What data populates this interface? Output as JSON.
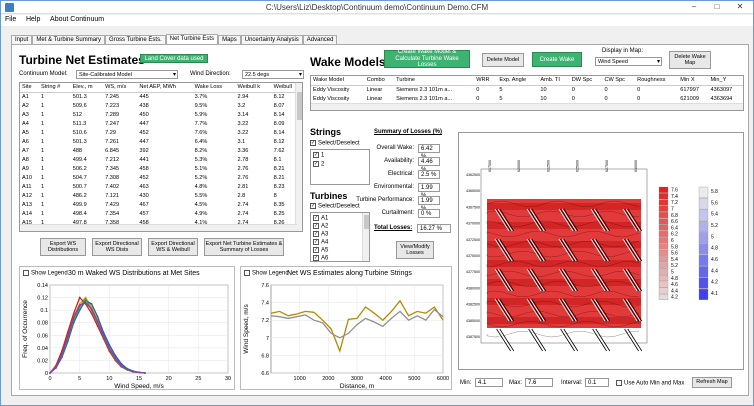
{
  "window": {
    "title": "C:\\Users\\Liz\\Desktop\\Continuum demo\\Continuum Demo.CFM",
    "minimize": "–",
    "maximize": "□",
    "close": "✕"
  },
  "menu": [
    "File",
    "Help",
    "About Continuum"
  ],
  "tabs": [
    "Input",
    "Met & Turbine Summary",
    "Gross Turbine Ests.",
    "Net Turbine Ests",
    "Maps",
    "Uncertainty Analysis",
    "Advanced"
  ],
  "net": {
    "title": "Turbine Net Estimates",
    "land_cover": "Land Cover data used",
    "model_label": "Continuum Model:",
    "model_value": "Site-Calibrated Model",
    "wd_label": "Wind Direction:",
    "wd_value": "22.5 degs",
    "columns": [
      "Site",
      "String #",
      "Elev., m",
      "WS, m/s",
      "Net AEP, MWh",
      "Wake Loss",
      "Weibull k",
      "Weibull"
    ],
    "rows": [
      [
        "A1",
        "1",
        "501.3",
        "7.245",
        "445",
        "3.7%",
        "2.94",
        "8.12"
      ],
      [
        "A2",
        "1",
        "509.6",
        "7.223",
        "438",
        "9.5%",
        "3.2",
        "8.07"
      ],
      [
        "A3",
        "1",
        "512",
        "7.289",
        "450",
        "5.9%",
        "3.14",
        "8.14"
      ],
      [
        "A4",
        "1",
        "511.3",
        "7.247",
        "447",
        "7.7%",
        "3.22",
        "8.09"
      ],
      [
        "A5",
        "1",
        "510.6",
        "7.29",
        "452",
        "7.6%",
        "3.22",
        "8.14"
      ],
      [
        "A6",
        "1",
        "501.3",
        "7.261",
        "447",
        "6.4%",
        "3.1",
        "8.12"
      ],
      [
        "A7",
        "1",
        "488",
        "6.845",
        "392",
        "8.2%",
        "3.36",
        "7.62"
      ],
      [
        "A8",
        "1",
        "499.4",
        "7.212",
        "441",
        "5.3%",
        "2.78",
        "8.1"
      ],
      [
        "A9",
        "1",
        "506.2",
        "7.345",
        "458",
        "5.1%",
        "2.76",
        "8.21"
      ],
      [
        "A10",
        "1",
        "504.7",
        "7.308",
        "452",
        "5.2%",
        "2.76",
        "8.21"
      ],
      [
        "A11",
        "1",
        "500.7",
        "7.402",
        "463",
        "4.8%",
        "2.81",
        "8.23"
      ],
      [
        "A12",
        "1",
        "486.2",
        "7.121",
        "430",
        "5.5%",
        "2.8",
        "8"
      ],
      [
        "A13",
        "1",
        "499.9",
        "7.429",
        "467",
        "4.5%",
        "2.74",
        "8.35"
      ],
      [
        "A14",
        "1",
        "498.4",
        "7.354",
        "457",
        "4.9%",
        "2.74",
        "8.25"
      ],
      [
        "A15",
        "1",
        "497.8",
        "7.358",
        "458",
        "4.1%",
        "2.74",
        "8.26"
      ]
    ],
    "buttons": [
      "Export WS Distributions",
      "Export Directional WS Dists",
      "Export Directional WS & Weibull",
      "Export Net Turbine Estimates & Summary of Losses"
    ]
  },
  "wake": {
    "title": "Wake Models",
    "create_calc": "Create Wake Model & Calculate Turbine Wake Losses",
    "delete_model": "Delete Model",
    "create_map": "Create Wake Map",
    "display_label": "Display in Map:",
    "display_value": "Wind Speed",
    "delete_map": "Delete Wake Map",
    "columns": [
      "Wake Model",
      "Combo",
      "Turbine",
      "WRR",
      "Exp. Angle",
      "Amb. TI",
      "DW Spc",
      "CW Spc",
      "Roughness",
      "Min X",
      "Min_Y"
    ],
    "rows": [
      [
        "Eddy Viscosity",
        "Linear",
        "Siemens 2.3 101m a...",
        "0",
        "5",
        "10",
        "0",
        "0",
        "0",
        "617997",
        "4363097"
      ],
      [
        "Eddy Viscosity",
        "Linear",
        "Siemens 2.3 101m a...",
        "0",
        "5",
        "10",
        "0",
        "0",
        "0",
        "621009",
        "4363694"
      ]
    ]
  },
  "strings": {
    "title": "Strings",
    "select_all": "Select/Deselect",
    "items": [
      "1",
      "2"
    ]
  },
  "turbines": {
    "title": "Turbines",
    "select_all": "Select/Deselect",
    "items": [
      "A1",
      "A2",
      "A3",
      "A4",
      "A5",
      "A6"
    ]
  },
  "losses": {
    "title": "Summary of Losses (%)",
    "rows": [
      {
        "label": "Overall Wake:",
        "value": "6.42 %"
      },
      {
        "label": "Availability:",
        "value": "4.46 %"
      },
      {
        "label": "Electrical:",
        "value": "2.5 %"
      },
      {
        "label": "Environmental:",
        "value": "1.99 %"
      },
      {
        "label": "Turbine Performance:",
        "value": "1.99 %"
      },
      {
        "label": "Curtailment:",
        "value": "0 %"
      }
    ],
    "total_label": "Total Losses:",
    "total_value": "16.27 %",
    "view_modify": "View/Modify Losses"
  },
  "map": {
    "min_label": "Min:",
    "min_value": "4.1",
    "max_label": "Max:",
    "max_value": "7.6",
    "interval_label": "Interval:",
    "interval_value": "0.1",
    "auto_label": "Use Auto Min and Max",
    "refresh": "Refresh Map",
    "x_ticks": [
      "617500",
      "620000",
      "622500",
      "625000",
      "627500",
      "630000"
    ],
    "y_ticks": [
      "4362500",
      "4365000",
      "4367500",
      "4370000",
      "4372500",
      "4375000",
      "4377500",
      "4380000",
      "4382500",
      "4385000",
      "4387500"
    ],
    "legend_red": [
      "7.6",
      "7.4",
      "7.2",
      "7",
      "6.8",
      "6.6",
      "6.4",
      "6.2",
      "6",
      "5.8",
      "5.6",
      "5.4",
      "5.2",
      "5",
      "4.8",
      "4.6",
      "4.4",
      "4.2"
    ],
    "legend_blue": [
      "5.8",
      "5.6",
      "5.4",
      "5.2",
      "5",
      "4.8",
      "4.6",
      "4.4",
      "4.2",
      "4.1"
    ]
  },
  "dist_chart": {
    "show_legend": "Show Legend",
    "title": "30 m Waked WS Distributions at Met Sites",
    "chart_data": {
      "type": "line",
      "xlabel": "Wind Speed, m/s",
      "ylabel": "Freq. of Occurrence",
      "xlim": [
        0,
        30
      ],
      "ylim": [
        0,
        0.14
      ],
      "x_ticks": [
        0,
        5,
        10,
        15,
        20,
        25,
        30
      ],
      "y_ticks": [
        0,
        0.02,
        0.04,
        0.06,
        0.08,
        0.1,
        0.12,
        0.14
      ],
      "series": [
        {
          "color": "#e8a000",
          "x": [
            0,
            1,
            2,
            3,
            4,
            5,
            6,
            7,
            8,
            9,
            10,
            11,
            12,
            13,
            14,
            15,
            16
          ],
          "y": [
            0,
            0.01,
            0.03,
            0.06,
            0.09,
            0.11,
            0.12,
            0.105,
            0.085,
            0.06,
            0.04,
            0.025,
            0.012,
            0.006,
            0.003,
            0.001,
            0
          ]
        },
        {
          "color": "#2a5db0",
          "x": [
            0,
            1,
            2,
            3,
            4,
            5,
            6,
            7,
            8,
            9,
            10,
            11,
            12,
            13,
            14,
            15,
            16
          ],
          "y": [
            0,
            0.008,
            0.025,
            0.05,
            0.08,
            0.1,
            0.115,
            0.11,
            0.09,
            0.065,
            0.045,
            0.028,
            0.015,
            0.007,
            0.003,
            0.001,
            0
          ]
        },
        {
          "color": "#d02020",
          "x": [
            0,
            1,
            2,
            3,
            4,
            5,
            6,
            7,
            8,
            9,
            10,
            11,
            12,
            13,
            14,
            15,
            16
          ],
          "y": [
            0,
            0.012,
            0.035,
            0.065,
            0.095,
            0.12,
            0.11,
            0.095,
            0.075,
            0.055,
            0.035,
            0.02,
            0.01,
            0.005,
            0.002,
            0.001,
            0
          ]
        },
        {
          "color": "#3aa040",
          "x": [
            0,
            1,
            2,
            3,
            4,
            5,
            6,
            7,
            8,
            9,
            10,
            11,
            12,
            13,
            14,
            15,
            16
          ],
          "y": [
            0,
            0.01,
            0.028,
            0.055,
            0.085,
            0.105,
            0.118,
            0.1,
            0.08,
            0.058,
            0.038,
            0.022,
            0.011,
            0.005,
            0.002,
            0.001,
            0
          ]
        },
        {
          "color": "#8040b0",
          "x": [
            0,
            1,
            2,
            3,
            4,
            5,
            6,
            7,
            8,
            9,
            10,
            11,
            12,
            13,
            14,
            15,
            16
          ],
          "y": [
            0,
            0.009,
            0.03,
            0.058,
            0.088,
            0.108,
            0.112,
            0.102,
            0.082,
            0.06,
            0.04,
            0.024,
            0.012,
            0.006,
            0.002,
            0.001,
            0
          ]
        }
      ]
    }
  },
  "string_chart": {
    "show_legend": "Show Legend",
    "title": "Net WS Estimates along Turbine Strings",
    "chart_data": {
      "type": "line",
      "xlabel": "Distance, m",
      "ylabel": "Wind Speed, m/s",
      "xlim": [
        0,
        6000
      ],
      "ylim": [
        6.6,
        7.6
      ],
      "x_ticks": [
        1000,
        2000,
        3000,
        4000,
        5000,
        6000
      ],
      "y_ticks": [
        6.6,
        6.8,
        7,
        7.2,
        7.4,
        7.6
      ],
      "series": [
        {
          "color": "#b88a00",
          "x": [
            0,
            300,
            600,
            900,
            1200,
            1500,
            1800,
            2100,
            2400,
            2700,
            3000,
            3300,
            3600,
            3900,
            4200,
            4500,
            4800,
            5100,
            5400,
            5700,
            6000
          ],
          "y": [
            7.28,
            7.3,
            7.25,
            7.27,
            7.3,
            7.29,
            7.2,
            7.1,
            6.85,
            7.21,
            7.22,
            7.35,
            7.28,
            7.2,
            7.3,
            7.42,
            7.25,
            7.3,
            7.28,
            7.35,
            7.2
          ]
        },
        {
          "color": "#909090",
          "x": [
            0,
            300,
            600,
            900,
            1200,
            1500,
            1800,
            2100,
            2400,
            2700,
            3000,
            3300,
            3600,
            3900,
            4200,
            4500,
            4800,
            5100,
            5400,
            5700,
            6000
          ],
          "y": [
            7.25,
            7.24,
            7.22,
            7.24,
            7.26,
            7.2,
            7.17,
            7.05,
            7.0,
            7.05,
            7.15,
            7.22,
            7.18,
            7.13,
            7.22,
            7.3,
            7.2,
            7.25,
            7.2,
            7.32,
            7.24
          ]
        }
      ]
    }
  }
}
